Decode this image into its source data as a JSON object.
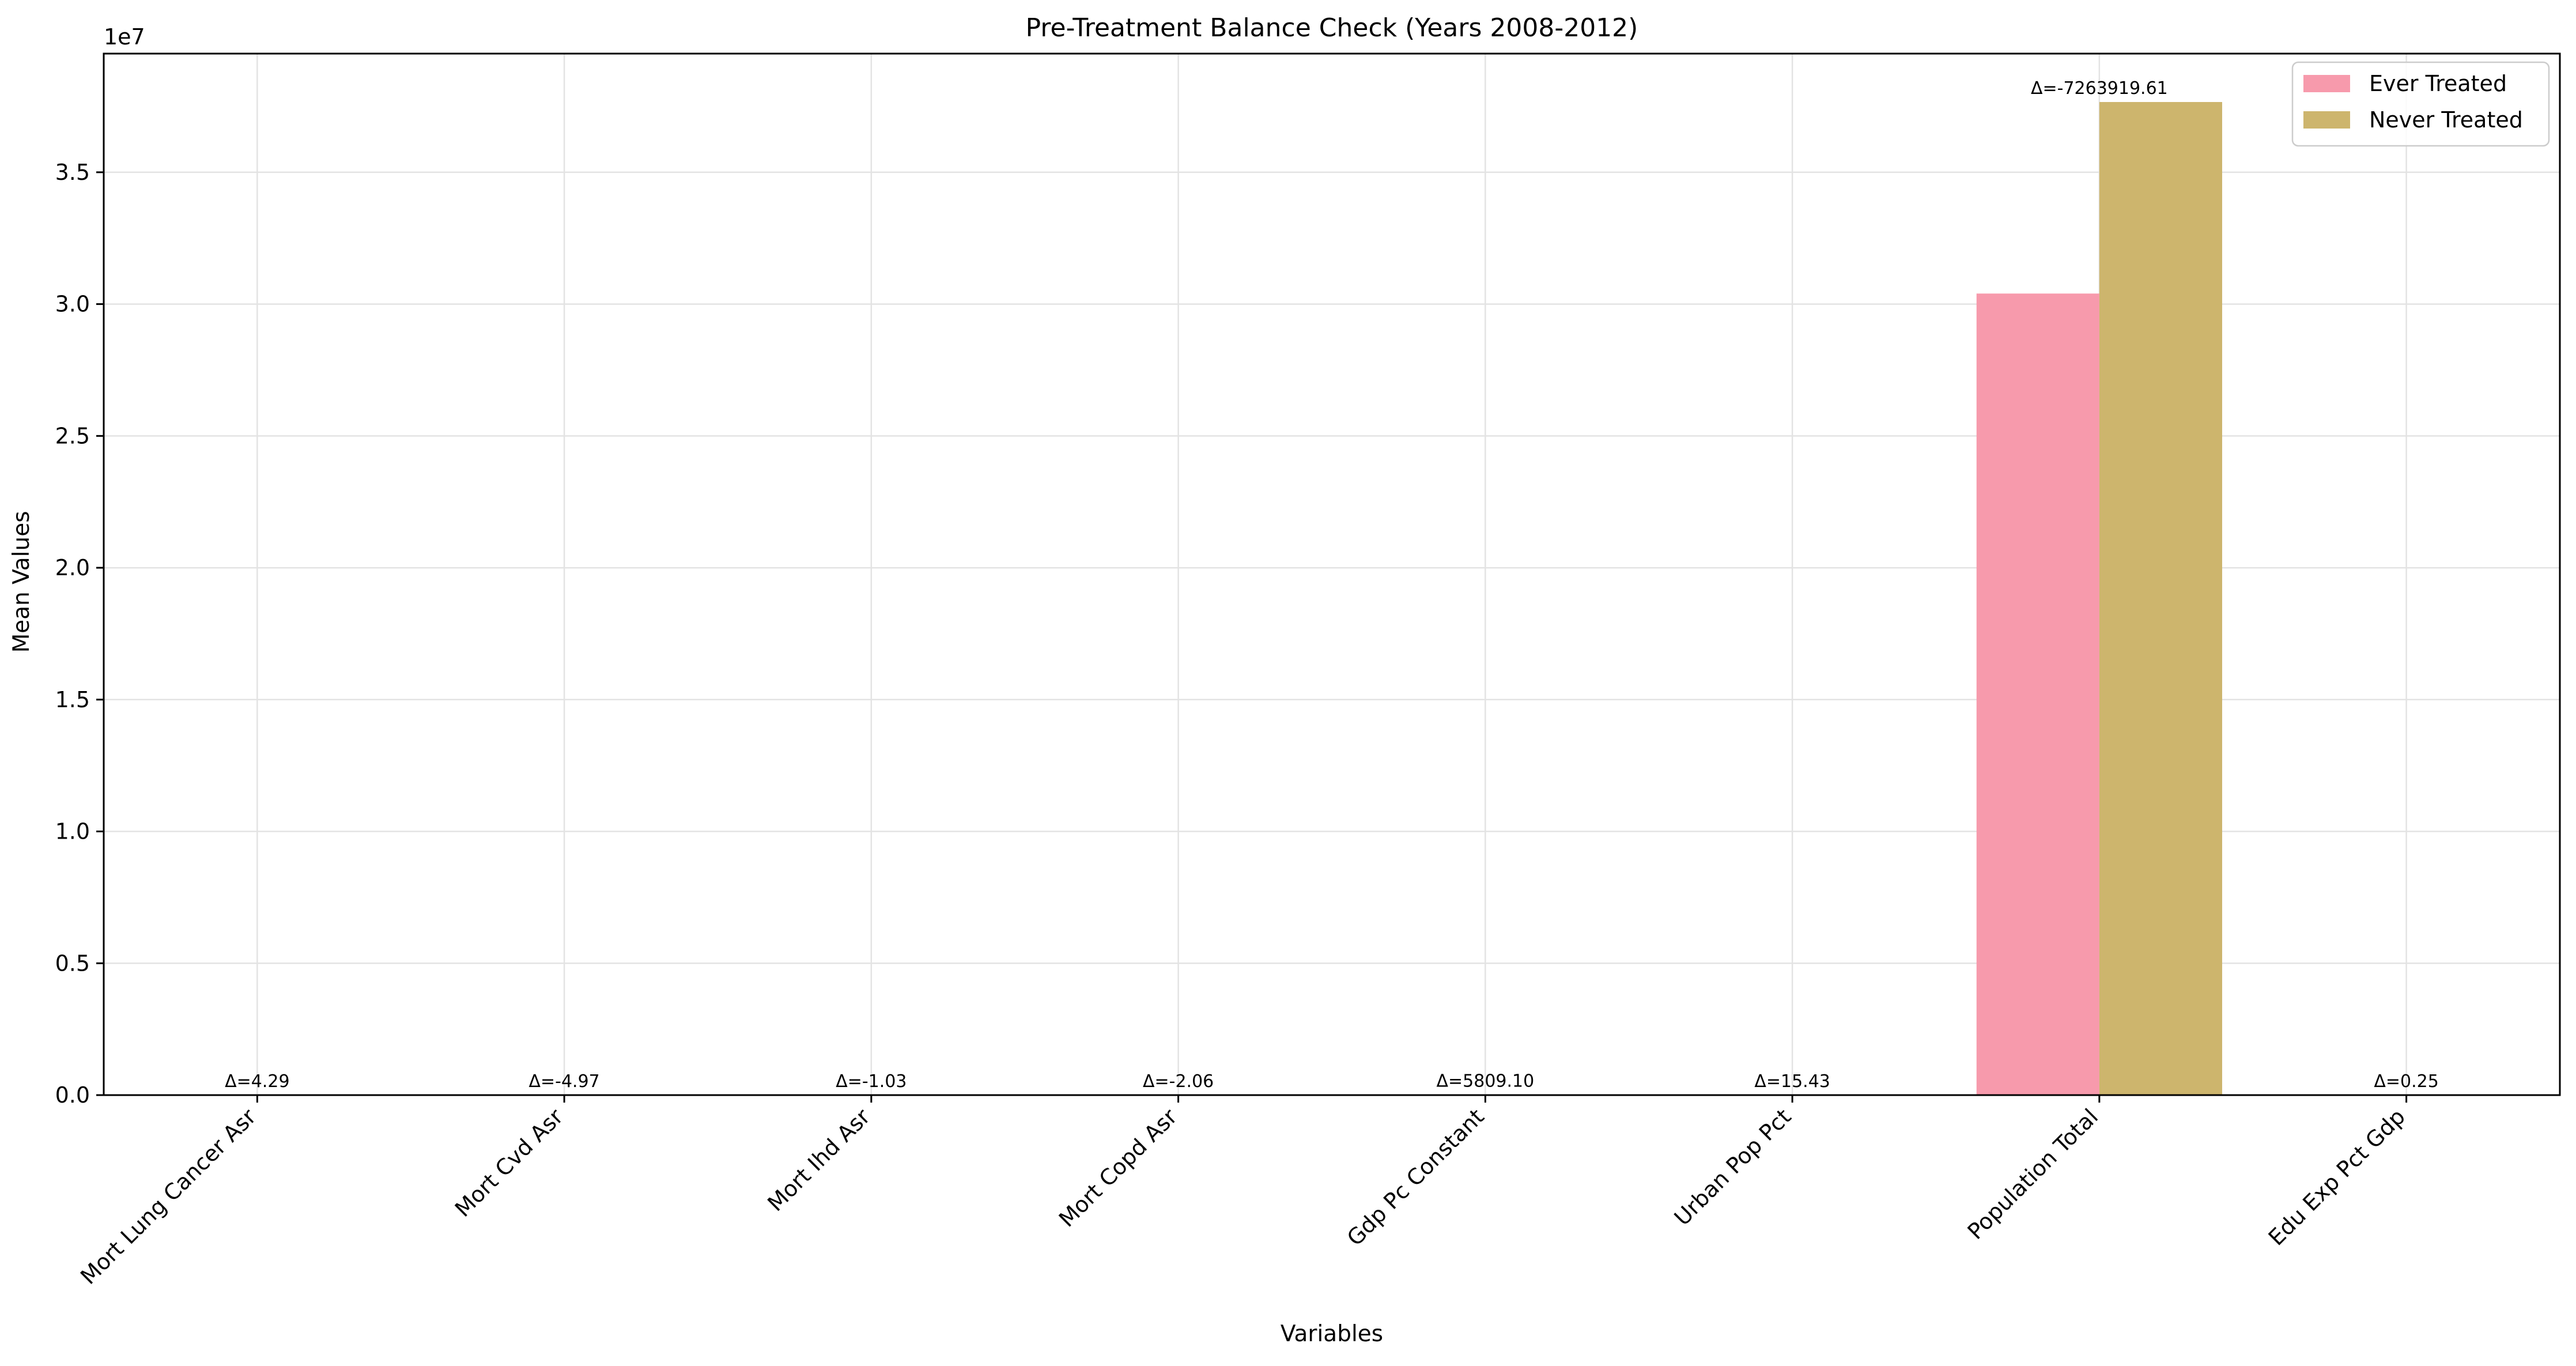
{
  "chart_data": {
    "type": "bar",
    "title": "Pre-Treatment Balance Check (Years 2008-2012)",
    "xlabel": "Variables",
    "ylabel": "Mean Values",
    "y_offset_label": "1e7",
    "ylim": [
      0,
      39500000
    ],
    "y_ticks": [
      0,
      5000000,
      10000000,
      15000000,
      20000000,
      25000000,
      30000000,
      35000000
    ],
    "y_tick_labels": [
      "0.0",
      "0.5",
      "1.0",
      "1.5",
      "2.0",
      "2.5",
      "3.0",
      "3.5"
    ],
    "grid": true,
    "legend_position": "top-right",
    "categories": [
      "Mort Lung Cancer Asr",
      "Mort Cvd Asr",
      "Mort Ihd Asr",
      "Mort Copd Asr",
      "Gdp Pc Constant",
      "Urban Pop Pct",
      "Population Total",
      "Edu Exp Pct Gdp"
    ],
    "series": [
      {
        "name": "Ever Treated",
        "color": "#f79aac",
        "values": [
          45,
          300,
          105,
          45,
          12000,
          60,
          30400000,
          4.6
        ]
      },
      {
        "name": "Never Treated",
        "color": "#cdb56d",
        "values": [
          41,
          305,
          106,
          47,
          6200,
          45,
          37663919.61,
          4.35
        ]
      }
    ],
    "annotations": [
      "Δ=4.29",
      "Δ=-4.97",
      "Δ=-1.03",
      "Δ=-2.06",
      "Δ=5809.10",
      "Δ=15.43",
      "Δ=-7263919.61",
      "Δ=0.25"
    ]
  }
}
